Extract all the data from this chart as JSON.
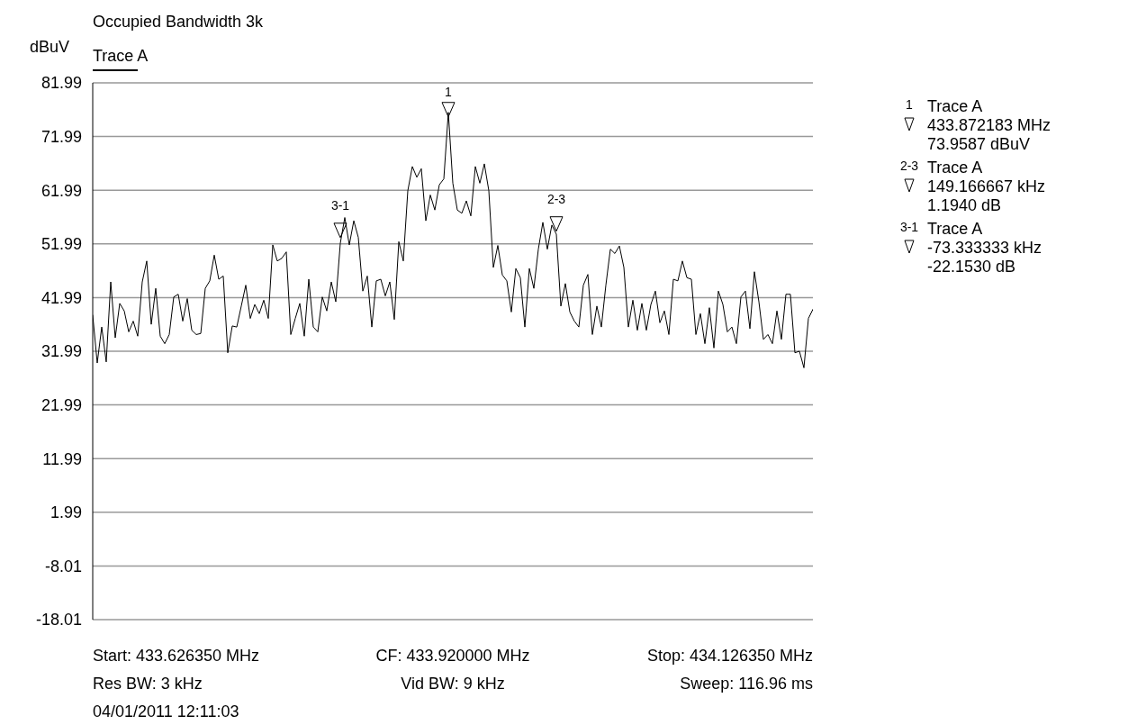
{
  "chart_data": {
    "type": "line",
    "title": "Occupied Bandwidth 3k",
    "ylabel": "dBuV",
    "legend": "top left",
    "grid": true,
    "tick_labels": "y",
    "categories": [
      null,
      null,
      null,
      null,
      null,
      null,
      null,
      null,
      null,
      null,
      null,
      null,
      null,
      null,
      null,
      null,
      null,
      null,
      null,
      null,
      null,
      null,
      null,
      null,
      null,
      null,
      null,
      null,
      null,
      null,
      null,
      null,
      null,
      null,
      null,
      null,
      null,
      null,
      null,
      null,
      null,
      null,
      null,
      null,
      null,
      null,
      null,
      null,
      null,
      null,
      null,
      null,
      null,
      null,
      null,
      null,
      null,
      null,
      null,
      null,
      null,
      null,
      null,
      null,
      null,
      null,
      null,
      null,
      null,
      null,
      null,
      null,
      null,
      null,
      null,
      null,
      null,
      null,
      null,
      null,
      null,
      null,
      null,
      null,
      null,
      null,
      null,
      null,
      null,
      null,
      null,
      null,
      null,
      null,
      null,
      null,
      null,
      null,
      null,
      null,
      null,
      null,
      null,
      null,
      null,
      null,
      null,
      null,
      null,
      null,
      null,
      null,
      null,
      null,
      null,
      null,
      null,
      null,
      null,
      null,
      null,
      null,
      null,
      null,
      null,
      null,
      null,
      null,
      null,
      null,
      null,
      null,
      null,
      null,
      null,
      null,
      null,
      null,
      null,
      null,
      null,
      null,
      null,
      null,
      null,
      null,
      null,
      null,
      null,
      null,
      null,
      null,
      null,
      null,
      null,
      null,
      null,
      null,
      null,
      null,
      null
    ],
    "ylim": [
      -18.01,
      81.99
    ],
    "yticks": [
      -18.01,
      -8.01,
      1.99,
      11.99,
      21.99,
      31.99,
      41.99,
      51.99,
      61.99,
      71.99,
      81.99
    ],
    "series": [
      {
        "name": "Trace A",
        "color": "#000000",
        "values": [
          38.7,
          29.8,
          36.5,
          30.0,
          44.9,
          34.5,
          40.9,
          39.5,
          35.6,
          37.6,
          34.8,
          44.9,
          48.8,
          37.0,
          43.7,
          34.8,
          33.4,
          35.1,
          42.1,
          42.6,
          37.6,
          41.8,
          35.9,
          35.1,
          35.3,
          43.7,
          45.1,
          49.9,
          45.4,
          46.0,
          31.7,
          36.7,
          36.5,
          40.4,
          44.3,
          38.1,
          40.7,
          39.0,
          41.5,
          38.1,
          51.8,
          48.8,
          49.3,
          50.5,
          35.1,
          38.1,
          40.9,
          34.8,
          45.4,
          36.5,
          35.6,
          42.1,
          39.5,
          44.9,
          41.2,
          52.1,
          56.9,
          51.8,
          56.3,
          53.2,
          43.2,
          46.0,
          36.5,
          45.1,
          45.4,
          42.3,
          44.9,
          37.9,
          52.4,
          48.8,
          61.9,
          66.4,
          64.4,
          66.0,
          56.3,
          61.1,
          58.3,
          63.0,
          64.1,
          76.5,
          63.3,
          58.3,
          57.7,
          60.0,
          57.2,
          66.4,
          63.3,
          66.9,
          61.9,
          47.6,
          51.7,
          46.2,
          45.1,
          39.3,
          47.4,
          45.7,
          36.5,
          47.4,
          43.7,
          51.0,
          56.0,
          51.0,
          55.5,
          53.8,
          40.4,
          44.6,
          39.3,
          37.6,
          36.5,
          44.3,
          46.3,
          35.1,
          40.4,
          36.5,
          44.3,
          51.0,
          50.2,
          51.6,
          47.6,
          36.5,
          41.5,
          35.9,
          40.9,
          35.9,
          40.7,
          43.2,
          37.3,
          39.5,
          35.1,
          45.4,
          45.1,
          48.8,
          45.7,
          45.4,
          35.1,
          39.0,
          33.4,
          40.1,
          32.6,
          43.2,
          40.7,
          35.6,
          36.5,
          33.4,
          42.1,
          43.2,
          36.2,
          46.8,
          41.2,
          34.2,
          35.1,
          33.4,
          39.5,
          34.2,
          42.6,
          42.6,
          31.7,
          32.0,
          28.9,
          38.1,
          39.8
        ]
      },
      {
        "type": "scatter",
        "marker": "triangle",
        "color": "#000000",
        "values": [
          null,
          null,
          null,
          null,
          null,
          null,
          null,
          null,
          null,
          null,
          null,
          null,
          null,
          null,
          null,
          null,
          null,
          null,
          null,
          null,
          null,
          null,
          null,
          null,
          null,
          null,
          null,
          null,
          null,
          null,
          null,
          null,
          null,
          null,
          null,
          null,
          null,
          null,
          null,
          null,
          null,
          null,
          null,
          null,
          null,
          null,
          null,
          null,
          null,
          null,
          null,
          null,
          null,
          null,
          null,
          54.5,
          null,
          null,
          null,
          null,
          null,
          null,
          null,
          null,
          null,
          null,
          null,
          null,
          null,
          null,
          null,
          null,
          null,
          null,
          null,
          null,
          null,
          null,
          null,
          77.0,
          null,
          null,
          null,
          null,
          null,
          null,
          null,
          null,
          null,
          null,
          null,
          null,
          null,
          null,
          null,
          null,
          null,
          null,
          null,
          null,
          null,
          null,
          null,
          55.7,
          null,
          null,
          null,
          null,
          null,
          null,
          null,
          null,
          null,
          null,
          null,
          null,
          null,
          null,
          null,
          null,
          null,
          null,
          null,
          null,
          null,
          null,
          null,
          null,
          null,
          null,
          null,
          null,
          null,
          null,
          null,
          null,
          null,
          null,
          null,
          null,
          null,
          null,
          null,
          null,
          null,
          null,
          null,
          null,
          null,
          null,
          null,
          null,
          null,
          null,
          null,
          null,
          null,
          null,
          null,
          null,
          null
        ]
      }
    ],
    "annotations": [
      "Start: 433.626350 MHz",
      "CF: 433.920000 MHz",
      "Stop: 434.126350 MHz",
      "Res BW: 3 kHz",
      "Vid BW: 9 kHz",
      "Sweep: 116.96 ms",
      "04/01/2011 12:11:03",
      "3-1",
      "1",
      "2-3",
      "1",
      "Trace A",
      "433.872183 MHz",
      "73.9587 dBuV",
      "2-3",
      "Trace A",
      "149.166667 kHz",
      "1.1940 dB",
      "3-1",
      "Trace A",
      "-73.333333 kHz",
      "-22.1530 dB"
    ]
  }
}
